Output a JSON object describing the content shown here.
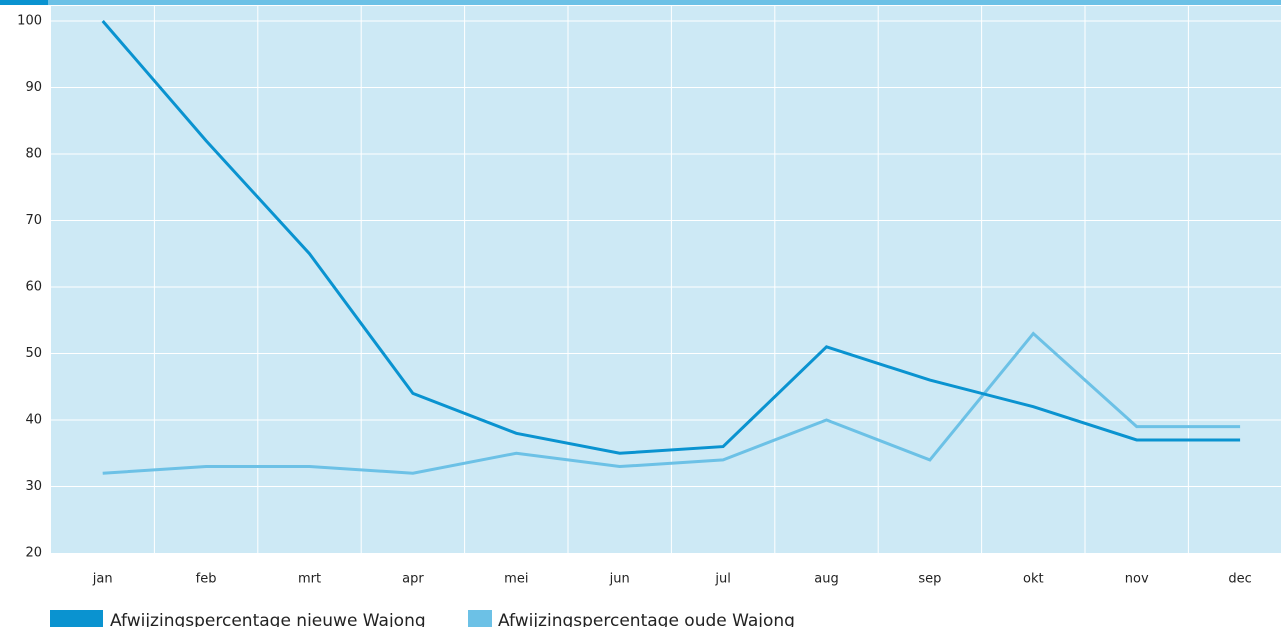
{
  "chart_data": {
    "type": "line",
    "categories": [
      "jan",
      "feb",
      "mrt",
      "apr",
      "mei",
      "jun",
      "jul",
      "aug",
      "sep",
      "okt",
      "nov",
      "dec"
    ],
    "series": [
      {
        "name": "Afwijzingspercentage nieuwe Wajong",
        "color": "#0a93d0",
        "values": [
          100,
          82,
          65,
          44,
          38,
          35,
          36,
          51,
          46,
          42,
          37,
          37
        ]
      },
      {
        "name": "Afwijzingspercentage oude Wajong",
        "color": "#6cc1e6",
        "values": [
          32,
          33,
          33,
          32,
          35,
          33,
          34,
          40,
          34,
          53,
          39,
          39
        ]
      }
    ],
    "ylim": [
      20,
      100
    ],
    "yticks": [
      20,
      30,
      40,
      50,
      60,
      70,
      80,
      90,
      100
    ],
    "grid": true
  }
}
